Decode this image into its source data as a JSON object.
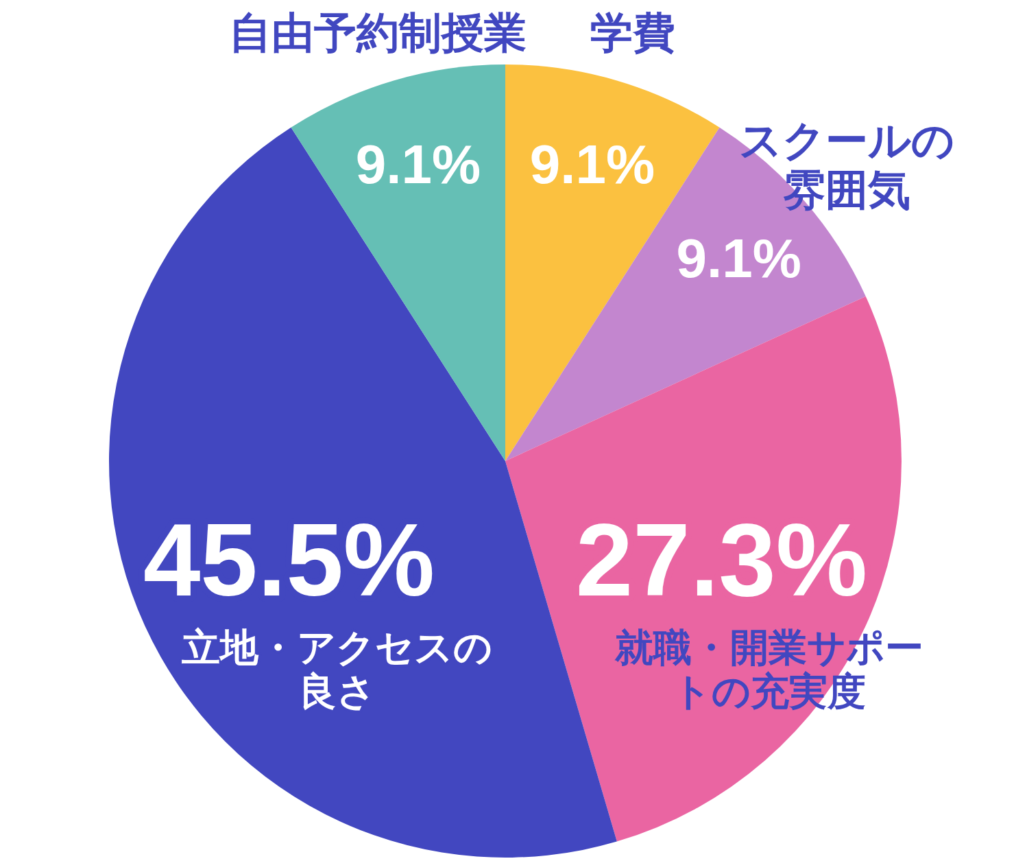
{
  "chart_data": {
    "type": "pie",
    "categories": [
      "学費",
      "スクールの雰囲気",
      "就職・開業サポートの充実度",
      "立地・アクセスの良さ",
      "自由予約制授業"
    ],
    "values": [
      9.1,
      9.1,
      27.3,
      45.5,
      9.1
    ],
    "colors": [
      "#fbc140",
      "#c386cf",
      "#ea65a2",
      "#4247c0",
      "#65bfb5"
    ],
    "value_labels": [
      "9.1%",
      "9.1%",
      "27.3%",
      "45.5%",
      "9.1%"
    ]
  }
}
